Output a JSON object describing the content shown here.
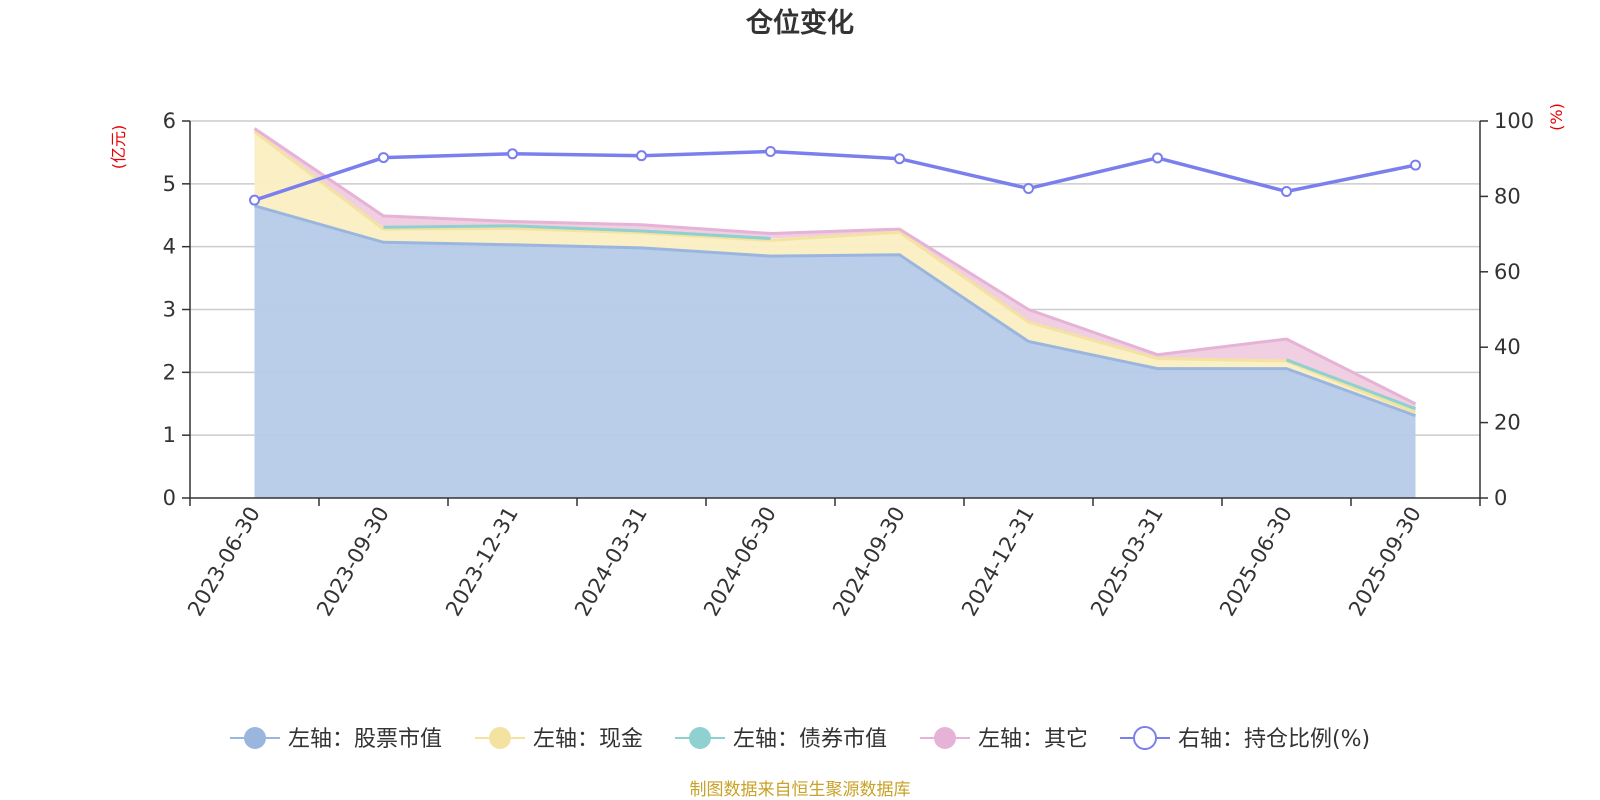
{
  "chart_data": {
    "type": "area",
    "title": "仓位变化",
    "categories": [
      "2023-06-30",
      "2023-09-30",
      "2023-12-31",
      "2024-03-31",
      "2024-06-30",
      "2024-09-30",
      "2024-12-31",
      "2025-03-31",
      "2025-06-30",
      "2025-09-30"
    ],
    "left_axis": {
      "unit": "(亿元)",
      "range": [
        0,
        6
      ],
      "ticks": [
        "0",
        "1",
        "2",
        "3",
        "4",
        "5",
        "6"
      ]
    },
    "right_axis": {
      "unit": "(%)",
      "range": [
        0,
        100
      ],
      "ticks": [
        "0",
        "20",
        "40",
        "60",
        "80",
        "100"
      ]
    },
    "series": [
      {
        "name": "左轴：股票市值",
        "axis": "left",
        "type": "area",
        "color": "#9ab6de",
        "fill": "#b7cbe8",
        "values": [
          4.65,
          4.07,
          4.03,
          3.98,
          3.85,
          3.87,
          2.49,
          2.06,
          2.06,
          1.31
        ]
      },
      {
        "name": "左轴：现金",
        "axis": "left",
        "type": "area",
        "color": "#f4e3a0",
        "fill": "#faeec2",
        "values": [
          1.18,
          0.21,
          0.26,
          0.24,
          0.25,
          0.36,
          0.31,
          0.16,
          0.12,
          0.05
        ]
      },
      {
        "name": "左轴：债券市值",
        "axis": "left",
        "type": "area",
        "color": "#8fd0d0",
        "fill": "#c5e6e4",
        "values": [
          null,
          0.03,
          0.04,
          0.03,
          0.03,
          null,
          null,
          null,
          0.02,
          0.06
        ]
      },
      {
        "name": "左轴：其它",
        "axis": "left",
        "type": "area",
        "color": "#e6b3d6",
        "fill": "#eeccdf",
        "values": [
          0.05,
          0.18,
          0.07,
          0.1,
          0.08,
          0.05,
          0.2,
          0.06,
          0.33,
          0.08
        ]
      },
      {
        "name": "右轴：持仓比例(%)",
        "axis": "right",
        "type": "line",
        "color": "#7b7fee",
        "values": [
          79,
          90.3,
          91.3,
          90.8,
          91.9,
          90,
          82.1,
          90.2,
          81.3,
          88.3
        ]
      }
    ],
    "legend": [
      "左轴：股票市值",
      "左轴：现金",
      "左轴：债券市值",
      "左轴：其它",
      "右轴：持仓比例(%)"
    ],
    "grid": true,
    "legend_position": "bottom"
  },
  "footer": {
    "source": "制图数据来自恒生聚源数据库"
  }
}
